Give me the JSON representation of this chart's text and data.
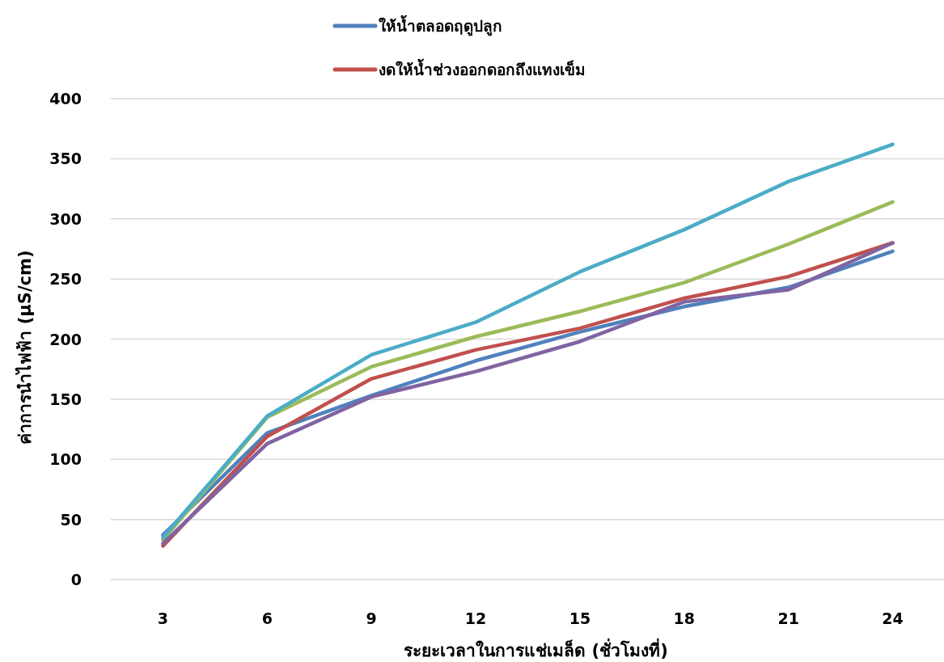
{
  "chart_data": {
    "type": "line",
    "xlabel": "ระยะเวลาในการแช่เมล็ด (ชั่วโมงที่)",
    "ylabel": "ค่าการนำไฟฟ้า (µS/cm)",
    "categories": [
      "3",
      "6",
      "9",
      "12",
      "15",
      "18",
      "21",
      "24"
    ],
    "ylim": [
      0,
      400
    ],
    "yticks": [
      0,
      50,
      100,
      150,
      200,
      250,
      300,
      350,
      400
    ],
    "grid": "y",
    "legend": "top",
    "marker": "none",
    "series": [
      {
        "name": "ให้น้ำตลอดฤดูปลูก",
        "color": "#4f81bd",
        "values": [
          37,
          122,
          153,
          182,
          206,
          227,
          243,
          273
        ]
      },
      {
        "name": "งดให้น้ำช่วงออกดอกถึงแทงเข็ม",
        "color": "#c0504d",
        "values": [
          28,
          119,
          167,
          191,
          209,
          234,
          252,
          280
        ]
      },
      {
        "color": "#9bbb59",
        "values": [
          33,
          135,
          177,
          202,
          223,
          247,
          279,
          314
        ]
      },
      {
        "color": "#8064a2",
        "values": [
          30,
          113,
          152,
          173,
          198,
          231,
          241,
          280
        ]
      },
      {
        "color": "#4bacc6",
        "values": [
          35,
          136,
          187,
          214,
          256,
          291,
          331,
          362
        ]
      }
    ]
  }
}
